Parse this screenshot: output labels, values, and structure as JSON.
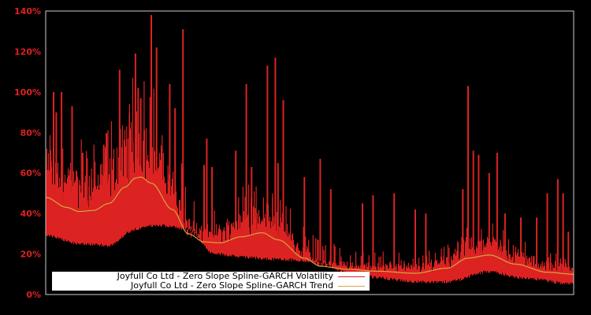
{
  "chart_data": {
    "type": "line",
    "title": "",
    "xlabel": "",
    "ylabel": "",
    "ylim": [
      0,
      140
    ],
    "y_ticks": [
      "0%",
      "20%",
      "40%",
      "60%",
      "80%",
      "100%",
      "120%",
      "140%"
    ],
    "y_tick_values": [
      0,
      20,
      40,
      60,
      80,
      100,
      120,
      140
    ],
    "grid": false,
    "legend_position": "lower-left",
    "background": "#000000",
    "series": [
      {
        "name": "Joyfull Co Ltd - Zero Slope Spline-GARCH Volatility",
        "color": "#dd2222",
        "style": "dense spiky series",
        "baseline_x": [
          0,
          0.06,
          0.12,
          0.17,
          0.21,
          0.27,
          0.32,
          0.38,
          0.45,
          0.51,
          0.58,
          0.63,
          0.7,
          0.76,
          0.84,
          0.9,
          1.0
        ],
        "baseline_values": [
          30,
          26,
          25,
          33,
          35,
          33,
          21,
          19,
          18,
          17,
          11,
          9,
          7,
          7,
          12,
          9,
          6
        ],
        "spike_x": [
          0.01,
          0.015,
          0.02,
          0.03,
          0.05,
          0.07,
          0.11,
          0.14,
          0.17,
          0.175,
          0.18,
          0.2,
          0.21,
          0.235,
          0.245,
          0.26,
          0.3,
          0.305,
          0.315,
          0.36,
          0.38,
          0.39,
          0.42,
          0.435,
          0.44,
          0.45,
          0.49,
          0.52,
          0.54,
          0.6,
          0.62,
          0.66,
          0.7,
          0.72,
          0.79,
          0.8,
          0.81,
          0.82,
          0.84,
          0.855,
          0.87,
          0.9,
          0.93,
          0.95,
          0.97,
          0.98,
          0.99
        ],
        "spike_values": [
          66,
          100,
          90,
          100,
          93,
          70,
          74,
          111,
          119,
          102,
          97,
          138,
          122,
          104,
          92,
          131,
          64,
          77,
          63,
          71,
          104,
          63,
          113,
          117,
          65,
          96,
          58,
          67,
          52,
          45,
          49,
          50,
          42,
          40,
          52,
          103,
          71,
          69,
          60,
          70,
          40,
          38,
          38,
          50,
          57,
          50,
          31
        ]
      },
      {
        "name": "Joyfull Co Ltd - Zero Slope Spline-GARCH Trend",
        "color": "#d4a640",
        "x": [
          0,
          0.04,
          0.063,
          0.09,
          0.12,
          0.15,
          0.17,
          0.18,
          0.2,
          0.24,
          0.27,
          0.3,
          0.33,
          0.37,
          0.41,
          0.44,
          0.49,
          0.52,
          0.57,
          0.63,
          0.7,
          0.76,
          0.8,
          0.84,
          0.89,
          0.95,
          1.0
        ],
        "values": [
          48,
          43,
          41,
          41.5,
          45,
          53,
          57.5,
          58,
          55,
          42,
          30,
          26,
          25.5,
          28.5,
          30.5,
          27,
          18,
          14,
          12.5,
          11.5,
          10.5,
          13,
          18,
          19.5,
          15,
          11,
          10
        ]
      }
    ]
  },
  "legend": {
    "items": [
      {
        "label": "Joyfull Co Ltd - Zero Slope Spline-GARCH Volatility",
        "color": "#dd2222"
      },
      {
        "label": "Joyfull Co Ltd - Zero Slope Spline-GARCH Trend",
        "color": "#d4a640"
      }
    ]
  }
}
